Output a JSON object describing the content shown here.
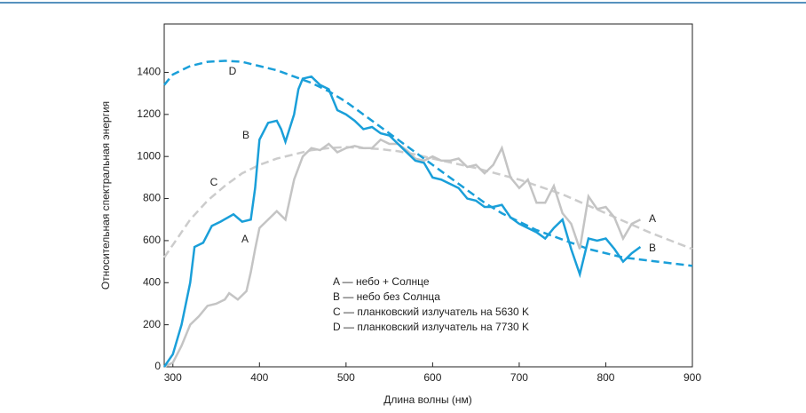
{
  "chart_data": {
    "type": "line",
    "xlabel": "Длина волны (нм)",
    "ylabel": "Относительная спектральная энергия",
    "xlim": [
      290,
      900
    ],
    "xticks": [
      300,
      400,
      500,
      600,
      700,
      800,
      900
    ],
    "ylim": [
      0,
      1630
    ],
    "yticks": [
      0,
      200,
      400,
      600,
      800,
      1000,
      1200,
      1400
    ],
    "annotations": [
      "D",
      "B",
      "C",
      "A",
      "A",
      "B",
      "A — небо + Солнце",
      "B — небо без Солнца",
      "C — планковский излучатель на 5630 K",
      "D — планковский излучатель на 7730 K"
    ],
    "series": [
      {
        "name": "C",
        "color": "#cccccc",
        "dashed": true,
        "x": [
          290,
          300,
          320,
          340,
          360,
          380,
          400,
          420,
          440,
          460,
          480,
          500,
          520,
          540,
          560,
          580,
          600,
          650,
          700,
          750,
          800,
          850,
          900
        ],
        "values": [
          520,
          580,
          700,
          790,
          860,
          920,
          960,
          990,
          1010,
          1030,
          1040,
          1045,
          1040,
          1035,
          1025,
          1010,
          990,
          945,
          890,
          820,
          730,
          640,
          560
        ]
      },
      {
        "name": "D",
        "color": "#1a9fd9",
        "dashed": true,
        "x": [
          290,
          300,
          320,
          340,
          360,
          380,
          400,
          420,
          440,
          460,
          480,
          500,
          520,
          540,
          560,
          580,
          600,
          620,
          640,
          660,
          680,
          700,
          720,
          740,
          760,
          780,
          800,
          820,
          840,
          860,
          880,
          900
        ],
        "values": [
          1340,
          1390,
          1430,
          1450,
          1455,
          1450,
          1430,
          1410,
          1380,
          1350,
          1310,
          1260,
          1200,
          1140,
          1080,
          1020,
          960,
          900,
          840,
          780,
          730,
          690,
          650,
          620,
          590,
          560,
          540,
          520,
          510,
          500,
          490,
          480
        ]
      },
      {
        "name": "A",
        "color": "#c4c4c4",
        "dashed": false,
        "x": [
          290,
          300,
          310,
          320,
          330,
          340,
          350,
          360,
          365,
          375,
          385,
          390,
          395,
          400,
          410,
          420,
          430,
          440,
          450,
          460,
          470,
          480,
          490,
          500,
          510,
          520,
          530,
          540,
          550,
          560,
          570,
          580,
          590,
          600,
          610,
          620,
          630,
          640,
          650,
          660,
          670,
          680,
          690,
          700,
          710,
          720,
          730,
          740,
          750,
          760,
          770,
          780,
          790,
          800,
          810,
          820,
          830,
          840
        ],
        "values": [
          0,
          20,
          100,
          200,
          240,
          290,
          300,
          320,
          350,
          320,
          360,
          450,
          560,
          660,
          700,
          740,
          700,
          890,
          1000,
          1040,
          1030,
          1060,
          1020,
          1040,
          1050,
          1040,
          1040,
          1080,
          1060,
          1060,
          1030,
          990,
          980,
          1000,
          980,
          980,
          990,
          950,
          960,
          920,
          960,
          1040,
          900,
          850,
          890,
          780,
          780,
          860,
          730,
          680,
          560,
          810,
          750,
          760,
          710,
          610,
          680,
          700
        ]
      },
      {
        "name": "B",
        "color": "#1a9fd9",
        "dashed": false,
        "x": [
          290,
          300,
          310,
          320,
          325,
          335,
          345,
          355,
          370,
          380,
          390,
          395,
          400,
          410,
          420,
          425,
          430,
          440,
          445,
          450,
          460,
          470,
          480,
          490,
          500,
          510,
          520,
          530,
          540,
          550,
          560,
          570,
          580,
          590,
          600,
          610,
          620,
          630,
          640,
          650,
          660,
          670,
          680,
          690,
          700,
          710,
          720,
          730,
          740,
          750,
          760,
          770,
          780,
          790,
          800,
          810,
          820,
          830,
          840
        ],
        "values": [
          0,
          60,
          200,
          400,
          570,
          590,
          670,
          690,
          725,
          690,
          700,
          850,
          1080,
          1160,
          1170,
          1130,
          1070,
          1200,
          1320,
          1370,
          1380,
          1340,
          1320,
          1220,
          1200,
          1170,
          1130,
          1140,
          1110,
          1100,
          1060,
          1020,
          980,
          970,
          900,
          890,
          870,
          850,
          800,
          790,
          760,
          760,
          770,
          710,
          680,
          660,
          640,
          610,
          660,
          700,
          560,
          440,
          610,
          600,
          610,
          560,
          500,
          540,
          570
        ]
      }
    ]
  }
}
